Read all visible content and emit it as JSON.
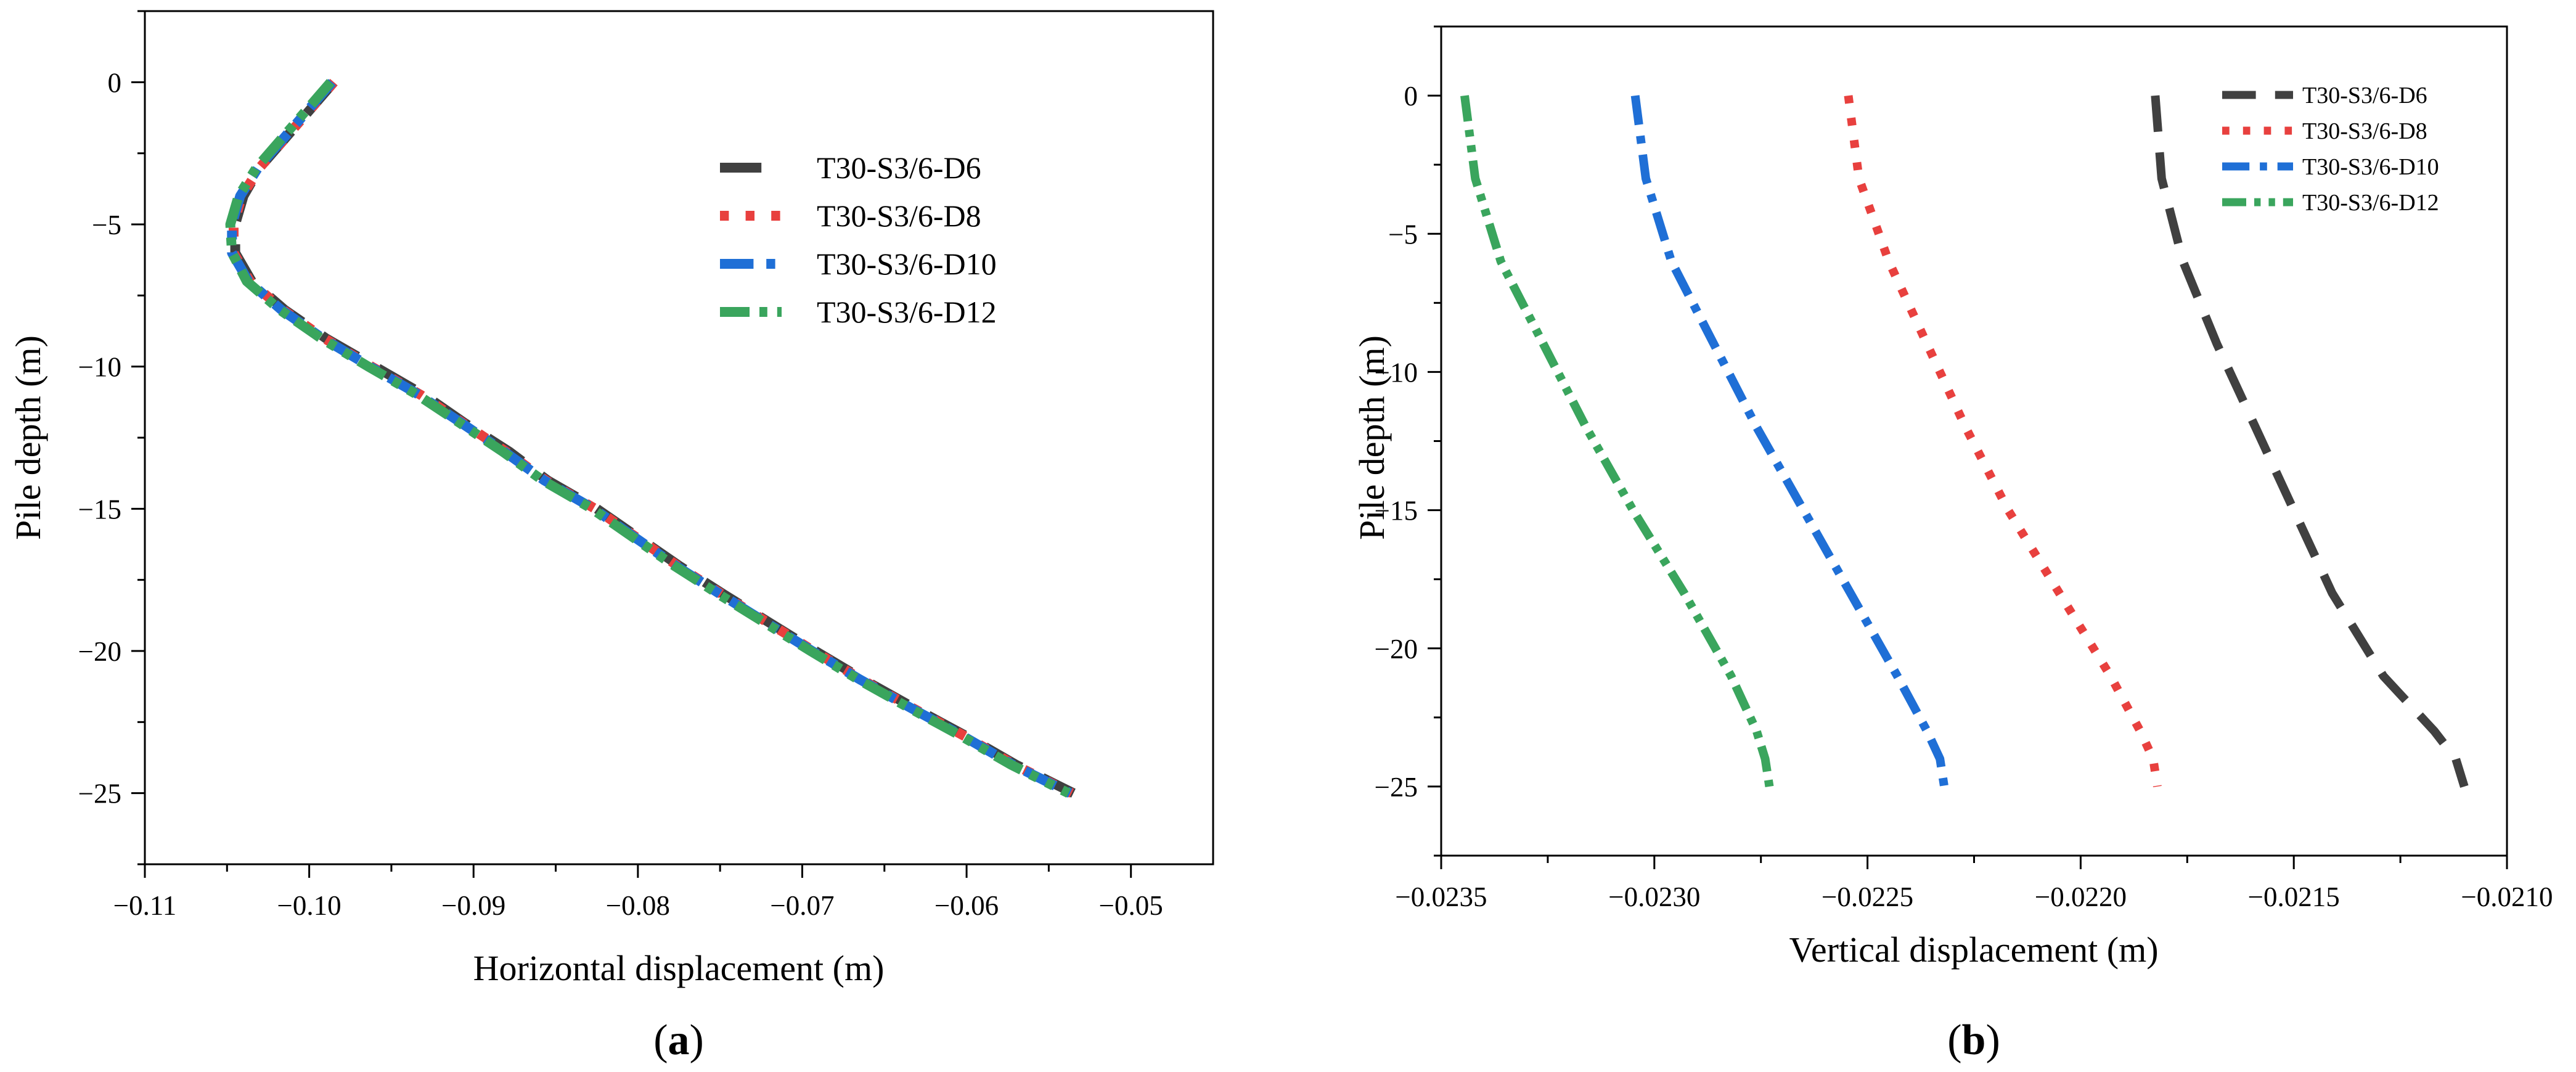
{
  "chart_data": [
    {
      "type": "line",
      "panel_label": "a",
      "xlabel": "Horizontal displacement (m)",
      "ylabel": "Pile depth (m)",
      "xlim": [
        -0.11,
        -0.045
      ],
      "ylim": [
        -27.5,
        2.5
      ],
      "xticks": [
        -0.11,
        -0.1,
        -0.09,
        -0.08,
        -0.07,
        -0.06,
        -0.05
      ],
      "xtick_labels": [
        "−0.11",
        "−0.10",
        "−0.09",
        "−0.08",
        "−0.07",
        "−0.06",
        "−0.05"
      ],
      "yticks": [
        0,
        -5,
        -10,
        -15,
        -20,
        -25
      ],
      "ytick_labels": [
        "0",
        "−5",
        "−10",
        "−15",
        "−20",
        "−25"
      ],
      "legend_position": "top-right",
      "series": [
        {
          "name": "T30-S3/6-D6",
          "color": "#404040",
          "dash": "dash",
          "points": [
            [
              -0.0985,
              0
            ],
            [
              -0.1,
              -1
            ],
            [
              -0.1015,
              -2
            ],
            [
              -0.103,
              -3
            ],
            [
              -0.104,
              -4
            ],
            [
              -0.1045,
              -5
            ],
            [
              -0.1045,
              -6
            ],
            [
              -0.1035,
              -7
            ],
            [
              -0.1015,
              -8
            ],
            [
              -0.099,
              -9
            ],
            [
              -0.096,
              -10
            ],
            [
              -0.093,
              -11
            ],
            [
              -0.0905,
              -12
            ],
            [
              -0.0878,
              -13
            ],
            [
              -0.0855,
              -14
            ],
            [
              -0.0825,
              -15
            ],
            [
              -0.08,
              -16
            ],
            [
              -0.0775,
              -17
            ],
            [
              -0.0748,
              -18
            ],
            [
              -0.072,
              -19
            ],
            [
              -0.0692,
              -20
            ],
            [
              -0.0663,
              -21
            ],
            [
              -0.0632,
              -22
            ],
            [
              -0.06,
              -23
            ],
            [
              -0.057,
              -24
            ],
            [
              -0.0535,
              -25
            ]
          ]
        },
        {
          "name": "T30-S3/6-D8",
          "color": "#e8403e",
          "dash": "dot",
          "points": [
            [
              -0.0985,
              0
            ],
            [
              -0.1,
              -1
            ],
            [
              -0.1015,
              -2
            ],
            [
              -0.103,
              -3
            ],
            [
              -0.1041,
              -4
            ],
            [
              -0.1046,
              -5
            ],
            [
              -0.1046,
              -6
            ],
            [
              -0.1036,
              -7
            ],
            [
              -0.1016,
              -8
            ],
            [
              -0.0991,
              -9
            ],
            [
              -0.0962,
              -10
            ],
            [
              -0.0932,
              -11
            ],
            [
              -0.0906,
              -12
            ],
            [
              -0.088,
              -13
            ],
            [
              -0.0856,
              -14
            ],
            [
              -0.0826,
              -15
            ],
            [
              -0.0801,
              -16
            ],
            [
              -0.0776,
              -17
            ],
            [
              -0.0749,
              -18
            ],
            [
              -0.0721,
              -19
            ],
            [
              -0.0693,
              -20
            ],
            [
              -0.0664,
              -21
            ],
            [
              -0.0633,
              -22
            ],
            [
              -0.0601,
              -23
            ],
            [
              -0.0571,
              -24
            ],
            [
              -0.0536,
              -25
            ]
          ]
        },
        {
          "name": "T30-S3/6-D10",
          "color": "#1f6fd6",
          "dash": "dashdot",
          "points": [
            [
              -0.0986,
              0
            ],
            [
              -0.1001,
              -1
            ],
            [
              -0.1016,
              -2
            ],
            [
              -0.1031,
              -3
            ],
            [
              -0.1042,
              -4
            ],
            [
              -0.1047,
              -5
            ],
            [
              -0.1047,
              -6
            ],
            [
              -0.1037,
              -7
            ],
            [
              -0.1017,
              -8
            ],
            [
              -0.0992,
              -9
            ],
            [
              -0.0963,
              -10
            ],
            [
              -0.0933,
              -11
            ],
            [
              -0.0907,
              -12
            ],
            [
              -0.0881,
              -13
            ],
            [
              -0.0857,
              -14
            ],
            [
              -0.0827,
              -15
            ],
            [
              -0.0802,
              -16
            ],
            [
              -0.0777,
              -17
            ],
            [
              -0.075,
              -18
            ],
            [
              -0.0722,
              -19
            ],
            [
              -0.0694,
              -20
            ],
            [
              -0.0665,
              -21
            ],
            [
              -0.0634,
              -22
            ],
            [
              -0.0602,
              -23
            ],
            [
              -0.0572,
              -24
            ],
            [
              -0.0537,
              -25
            ]
          ]
        },
        {
          "name": "T30-S3/6-D12",
          "color": "#3aa55d",
          "dash": "dashdotdot",
          "points": [
            [
              -0.0987,
              0
            ],
            [
              -0.1002,
              -1
            ],
            [
              -0.1017,
              -2
            ],
            [
              -0.1032,
              -3
            ],
            [
              -0.1043,
              -4
            ],
            [
              -0.1048,
              -5
            ],
            [
              -0.1047,
              -6
            ],
            [
              -0.1038,
              -7
            ],
            [
              -0.1018,
              -8
            ],
            [
              -0.0993,
              -9
            ],
            [
              -0.0964,
              -10
            ],
            [
              -0.0934,
              -11
            ],
            [
              -0.0908,
              -12
            ],
            [
              -0.0882,
              -13
            ],
            [
              -0.0858,
              -14
            ],
            [
              -0.0828,
              -15
            ],
            [
              -0.0803,
              -16
            ],
            [
              -0.0778,
              -17
            ],
            [
              -0.0751,
              -18
            ],
            [
              -0.0723,
              -19
            ],
            [
              -0.0695,
              -20
            ],
            [
              -0.0666,
              -21
            ],
            [
              -0.0635,
              -22
            ],
            [
              -0.0603,
              -23
            ],
            [
              -0.0573,
              -24
            ],
            [
              -0.0538,
              -25
            ]
          ]
        }
      ]
    },
    {
      "type": "line",
      "panel_label": "b",
      "xlabel": "Vertical displacement (m)",
      "ylabel": "Pile depth (m)",
      "xlim": [
        -0.0235,
        -0.021
      ],
      "ylim": [
        -27.5,
        2.5
      ],
      "xticks": [
        -0.0235,
        -0.023,
        -0.0225,
        -0.022,
        -0.0215,
        -0.021
      ],
      "xtick_labels": [
        "−0.0235",
        "−0.0230",
        "−0.0225",
        "−0.0220",
        "−0.0215",
        "−0.0210"
      ],
      "yticks": [
        0,
        -5,
        -10,
        -15,
        -20,
        -25
      ],
      "ytick_labels": [
        "0",
        "−5",
        "−10",
        "−15",
        "−20",
        "−25"
      ],
      "legend_position": "top-right",
      "series": [
        {
          "name": "T30-S3/6-D6",
          "color": "#404040",
          "dash": "dash",
          "points": [
            [
              -0.021825,
              0
            ],
            [
              -0.02181,
              -3
            ],
            [
              -0.02176,
              -6
            ],
            [
              -0.02168,
              -9
            ],
            [
              -0.02159,
              -12
            ],
            [
              -0.0215,
              -15
            ],
            [
              -0.02141,
              -18
            ],
            [
              -0.02129,
              -21
            ],
            [
              -0.02117,
              -23
            ],
            [
              -0.02112,
              -24
            ],
            [
              -0.0211,
              -25
            ]
          ]
        },
        {
          "name": "T30-S3/6-D8",
          "color": "#e8403e",
          "dash": "dot",
          "points": [
            [
              -0.022545,
              0
            ],
            [
              -0.02252,
              -3
            ],
            [
              -0.02245,
              -6
            ],
            [
              -0.02236,
              -9
            ],
            [
              -0.02227,
              -12
            ],
            [
              -0.02217,
              -15
            ],
            [
              -0.02205,
              -18
            ],
            [
              -0.02193,
              -21
            ],
            [
              -0.02186,
              -23
            ],
            [
              -0.02183,
              -24
            ],
            [
              -0.02182,
              -25
            ]
          ]
        },
        {
          "name": "T30-S3/6-D10",
          "color": "#1f6fd6",
          "dash": "dashdot",
          "points": [
            [
              -0.023045,
              0
            ],
            [
              -0.02302,
              -3
            ],
            [
              -0.02296,
              -6
            ],
            [
              -0.02286,
              -9
            ],
            [
              -0.02276,
              -12
            ],
            [
              -0.02265,
              -15
            ],
            [
              -0.02254,
              -18
            ],
            [
              -0.02243,
              -21
            ],
            [
              -0.02236,
              -23
            ],
            [
              -0.02233,
              -24
            ],
            [
              -0.02232,
              -25
            ]
          ]
        },
        {
          "name": "T30-S3/6-D12",
          "color": "#3aa55d",
          "dash": "dashdotdot",
          "points": [
            [
              -0.023445,
              0
            ],
            [
              -0.02342,
              -3
            ],
            [
              -0.02336,
              -6
            ],
            [
              -0.02326,
              -9
            ],
            [
              -0.02316,
              -12
            ],
            [
              -0.02305,
              -15
            ],
            [
              -0.02293,
              -18
            ],
            [
              -0.02282,
              -21
            ],
            [
              -0.02276,
              -23
            ],
            [
              -0.02274,
              -24
            ],
            [
              -0.02273,
              -25
            ]
          ]
        }
      ]
    }
  ]
}
